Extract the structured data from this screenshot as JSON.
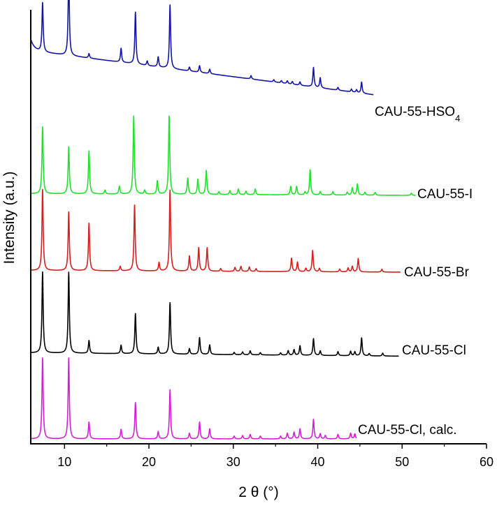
{
  "chart_data": {
    "type": "line",
    "title": "",
    "xlabel": "2 θ (°)",
    "ylabel": "Intensity (a.u.)",
    "xlim": [
      6,
      60
    ],
    "xticks": [
      10,
      20,
      30,
      40,
      50,
      60
    ],
    "y_ticks_shown": false,
    "grid": false,
    "legend": "labels at right end of each offset trace",
    "series": [
      {
        "name": "CAU-55-HSO4",
        "label_main": "CAU-55-HSO",
        "label_sub": "4",
        "color": "#1414a8",
        "x_end": 46.6,
        "baseline_start": 0.88,
        "baseline_end": 0.09,
        "start_bump": 0.2,
        "peaks": [
          [
            7.4,
            0.88
          ],
          [
            10.5,
            1.5
          ],
          [
            12.9,
            0.08
          ],
          [
            16.7,
            0.25
          ],
          [
            18.4,
            0.93
          ],
          [
            19.8,
            0.08
          ],
          [
            21.1,
            0.18
          ],
          [
            22.5,
            1.14
          ],
          [
            24.8,
            0.07
          ],
          [
            26.0,
            0.12
          ],
          [
            27.2,
            0.08
          ],
          [
            32.1,
            0.06
          ],
          [
            34.8,
            0.04
          ],
          [
            35.7,
            0.04
          ],
          [
            36.4,
            0.05
          ],
          [
            37.0,
            0.05
          ],
          [
            37.9,
            0.06
          ],
          [
            39.5,
            0.35
          ],
          [
            40.3,
            0.18
          ],
          [
            42.4,
            0.05
          ],
          [
            44.0,
            0.05
          ],
          [
            44.6,
            0.05
          ],
          [
            45.2,
            0.2
          ]
        ]
      },
      {
        "name": "CAU-55-I",
        "color": "#22e02e",
        "x_end": 51.6,
        "baseline_start": 0.03,
        "baseline_end": 0.0,
        "start_bump": 0,
        "peaks": [
          [
            7.4,
            1.2
          ],
          [
            10.5,
            0.84
          ],
          [
            12.9,
            0.77
          ],
          [
            14.8,
            0.07
          ],
          [
            16.5,
            0.14
          ],
          [
            18.2,
            1.4
          ],
          [
            19.5,
            0.07
          ],
          [
            21.0,
            0.24
          ],
          [
            22.4,
            1.4
          ],
          [
            24.6,
            0.29
          ],
          [
            25.8,
            0.27
          ],
          [
            26.8,
            0.43
          ],
          [
            28.3,
            0.05
          ],
          [
            29.6,
            0.07
          ],
          [
            30.6,
            0.1
          ],
          [
            31.5,
            0.06
          ],
          [
            32.6,
            0.1
          ],
          [
            36.8,
            0.15
          ],
          [
            37.5,
            0.15
          ],
          [
            38.5,
            0.05
          ],
          [
            39.1,
            0.45
          ],
          [
            40.3,
            0.06
          ],
          [
            41.8,
            0.06
          ],
          [
            43.5,
            0.05
          ],
          [
            44.1,
            0.13
          ],
          [
            44.7,
            0.2
          ],
          [
            45.6,
            0.05
          ],
          [
            46.8,
            0.05
          ],
          [
            51.1,
            0.04
          ]
        ]
      },
      {
        "name": "CAU-55-Br",
        "color": "#d81e1e",
        "x_end": 49.8,
        "baseline_start": 0.03,
        "baseline_end": 0.0,
        "start_bump": 0,
        "peaks": [
          [
            7.4,
            1.45
          ],
          [
            10.5,
            1.05
          ],
          [
            12.9,
            0.85
          ],
          [
            16.6,
            0.08
          ],
          [
            18.3,
            1.18
          ],
          [
            21.2,
            0.15
          ],
          [
            22.5,
            1.45
          ],
          [
            24.8,
            0.27
          ],
          [
            25.9,
            0.42
          ],
          [
            26.9,
            0.42
          ],
          [
            28.5,
            0.05
          ],
          [
            30.2,
            0.07
          ],
          [
            30.9,
            0.09
          ],
          [
            31.9,
            0.08
          ],
          [
            32.7,
            0.05
          ],
          [
            36.9,
            0.24
          ],
          [
            37.6,
            0.17
          ],
          [
            38.6,
            0.06
          ],
          [
            39.4,
            0.38
          ],
          [
            40.2,
            0.06
          ],
          [
            42.6,
            0.05
          ],
          [
            43.6,
            0.07
          ],
          [
            44.1,
            0.1
          ],
          [
            44.8,
            0.24
          ],
          [
            47.6,
            0.05
          ]
        ]
      },
      {
        "name": "CAU-55-Cl",
        "color": "#000000",
        "x_end": 49.6,
        "baseline_start": 0.03,
        "baseline_end": -0.03,
        "start_bump": 0,
        "peaks": [
          [
            7.4,
            1.45
          ],
          [
            10.5,
            1.45
          ],
          [
            12.9,
            0.23
          ],
          [
            16.7,
            0.15
          ],
          [
            18.4,
            0.72
          ],
          [
            21.1,
            0.12
          ],
          [
            22.5,
            0.92
          ],
          [
            24.8,
            0.1
          ],
          [
            26.0,
            0.3
          ],
          [
            27.2,
            0.17
          ],
          [
            30.1,
            0.04
          ],
          [
            31.1,
            0.05
          ],
          [
            32.0,
            0.07
          ],
          [
            33.2,
            0.04
          ],
          [
            35.6,
            0.04
          ],
          [
            36.5,
            0.08
          ],
          [
            37.2,
            0.1
          ],
          [
            37.9,
            0.17
          ],
          [
            39.5,
            0.3
          ],
          [
            40.3,
            0.08
          ],
          [
            42.4,
            0.07
          ],
          [
            43.9,
            0.08
          ],
          [
            44.4,
            0.07
          ],
          [
            45.2,
            0.32
          ],
          [
            46.1,
            0.04
          ],
          [
            47.7,
            0.05
          ]
        ]
      },
      {
        "name": "CAU-55-Cl, calc.",
        "color": "#d41fd4",
        "x_end": 44.6,
        "baseline_start": 0.0,
        "baseline_end": 0.0,
        "start_bump": 0,
        "peaks": [
          [
            7.4,
            1.45
          ],
          [
            10.5,
            1.45
          ],
          [
            12.9,
            0.3
          ],
          [
            16.7,
            0.17
          ],
          [
            18.4,
            0.65
          ],
          [
            21.1,
            0.13
          ],
          [
            22.5,
            0.88
          ],
          [
            24.8,
            0.1
          ],
          [
            26.0,
            0.3
          ],
          [
            27.2,
            0.18
          ],
          [
            30.1,
            0.05
          ],
          [
            31.1,
            0.06
          ],
          [
            32.0,
            0.08
          ],
          [
            33.2,
            0.05
          ],
          [
            35.6,
            0.05
          ],
          [
            36.4,
            0.1
          ],
          [
            37.2,
            0.12
          ],
          [
            37.9,
            0.18
          ],
          [
            39.5,
            0.35
          ],
          [
            40.3,
            0.09
          ],
          [
            40.9,
            0.06
          ],
          [
            42.4,
            0.08
          ],
          [
            43.9,
            0.1
          ],
          [
            44.4,
            0.09
          ]
        ]
      }
    ]
  }
}
